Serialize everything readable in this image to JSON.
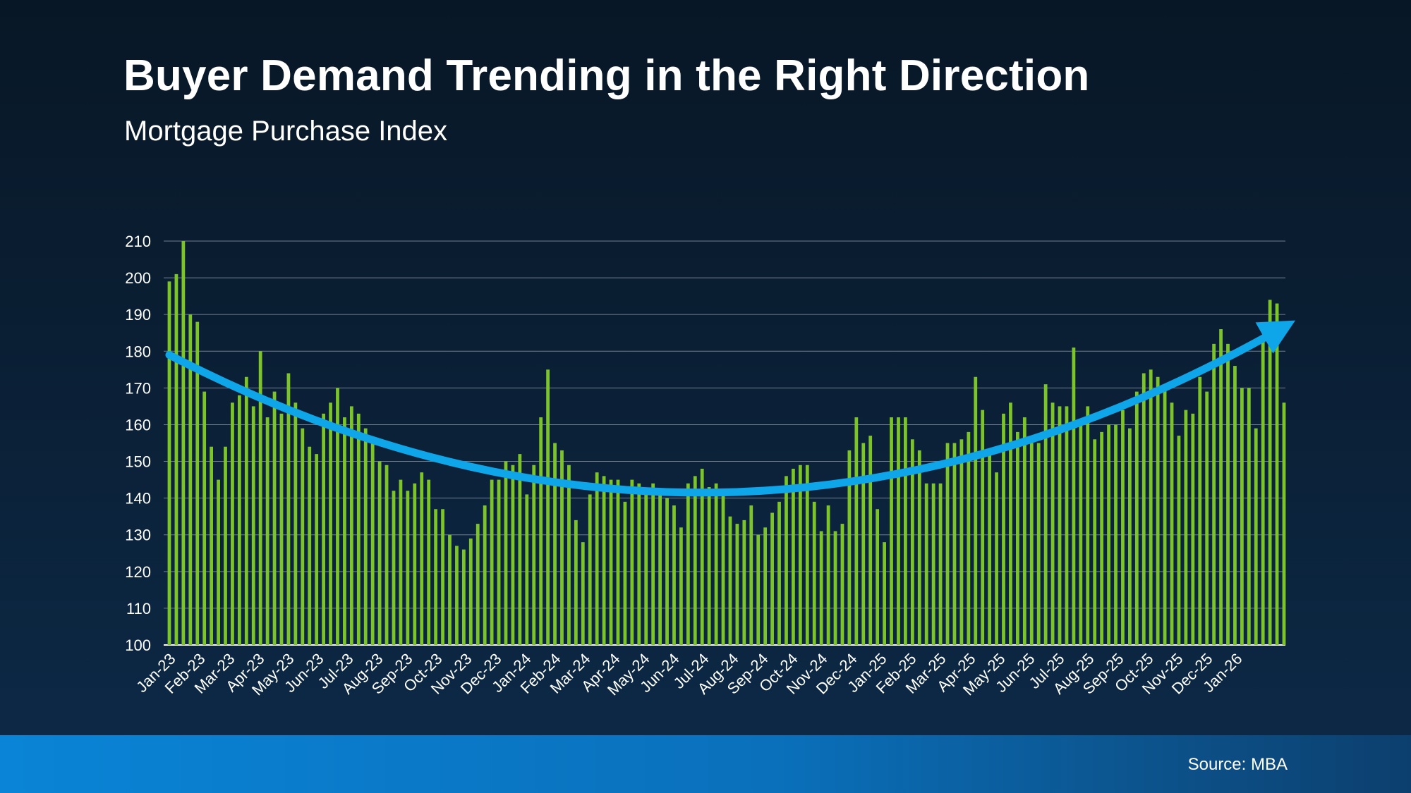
{
  "header": {
    "title": "Buyer Demand Trending in the Right Direction",
    "subtitle": "Mortgage Purchase Index"
  },
  "footer": {
    "source": "Source: MBA"
  },
  "colors": {
    "bar": "#7dc42b",
    "trend": "#0ea5e9",
    "grid": "#8a96a6",
    "footer_band": "#0a7cc8"
  },
  "chart_data": {
    "type": "bar",
    "title": "Mortgage Purchase Index",
    "xlabel": "",
    "ylabel": "",
    "ylim": [
      100,
      210
    ],
    "yticks": [
      100,
      110,
      120,
      130,
      140,
      150,
      160,
      170,
      180,
      190,
      200,
      210
    ],
    "grid": true,
    "tick_labels": [
      "Jan-23",
      "Feb-23",
      "Mar-23",
      "Apr-23",
      "May-23",
      "Jun-23",
      "Jul-23",
      "Aug-23",
      "Sep-23",
      "Oct-23",
      "Nov-23",
      "Dec-23",
      "Jan-24",
      "Feb-24",
      "Mar-24",
      "Apr-24",
      "May-24",
      "Jun-24",
      "Jul-24",
      "Aug-24",
      "Sep-24",
      "Oct-24",
      "Nov-24",
      "Dec-24",
      "Jan-25",
      "Feb-25",
      "Mar-25",
      "Apr-25",
      "May-25",
      "Jun-25",
      "Jul-25",
      "Aug-25",
      "Sep-25",
      "Oct-25",
      "Nov-25",
      "Dec-25",
      "Jan-26"
    ],
    "weekly_values": [
      199,
      201,
      210,
      190,
      188,
      169,
      154,
      145,
      154,
      166,
      168,
      173,
      165,
      180,
      162,
      169,
      163,
      174,
      166,
      159,
      154,
      152,
      163,
      166,
      170,
      162,
      165,
      163,
      159,
      155,
      150,
      149,
      142,
      145,
      142,
      144,
      147,
      145,
      137,
      137,
      130,
      127,
      126,
      129,
      133,
      138,
      145,
      145,
      150,
      149,
      152,
      141,
      149,
      162,
      175,
      155,
      153,
      149,
      134,
      128,
      141,
      147,
      146,
      145,
      145,
      139,
      145,
      144,
      141,
      144,
      141,
      140,
      138,
      132,
      144,
      146,
      148,
      143,
      144,
      141,
      135,
      133,
      134,
      138,
      130,
      132,
      136,
      139,
      146,
      148,
      149,
      149,
      139,
      131,
      138,
      131,
      133,
      153,
      162,
      155,
      157,
      137,
      128,
      162,
      162,
      162,
      156,
      153,
      144,
      144,
      144,
      155,
      155,
      156,
      158,
      173,
      164,
      152,
      147,
      163,
      166,
      158,
      162,
      155,
      155,
      171,
      166,
      165,
      165,
      181,
      160,
      165,
      156,
      158,
      160,
      160,
      164,
      159,
      169,
      174,
      175,
      173,
      170,
      166,
      157,
      164,
      163,
      173,
      169,
      182,
      186,
      182,
      176,
      170,
      170,
      159,
      183,
      194,
      193,
      166
    ],
    "series": [
      {
        "name": "Mortgage Purchase Index (weekly)",
        "type": "bar"
      },
      {
        "name": "Trend",
        "type": "curve",
        "x": [
          0,
          76,
          159
        ],
        "y": [
          179,
          141.5,
          186
        ]
      }
    ]
  }
}
